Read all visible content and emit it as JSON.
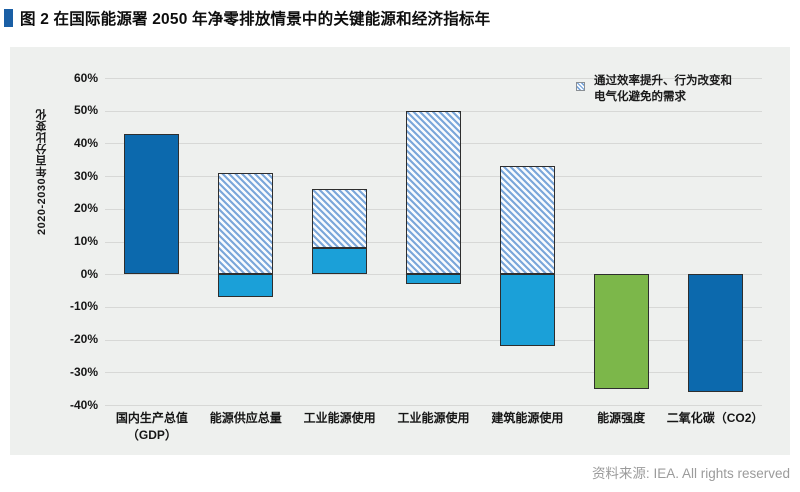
{
  "title": "图 2 在国际能源署 2050 年净零排放情景中的关键能源和经济指标年",
  "footer": {
    "source": "资料来源: IEA. All rights reserved"
  },
  "accent_color": "#1a5fa5",
  "chart_data": {
    "type": "bar",
    "stacked": true,
    "title": "图 2 在国际能源署 2050 年净零排放情景中的关键能源和经济指标年",
    "xlabel": "",
    "ylabel": "2020-2030年百分比变化",
    "ylim": [
      -40,
      60
    ],
    "ytick_step": 10,
    "ytick_format": "percent",
    "grid": true,
    "legend_position": "top-right",
    "legend": {
      "lines": [
        "通过效率提升、行为改变和",
        "电气化避免的需求"
      ],
      "style": "hatch"
    },
    "styles_note": {
      "blue": "solid dark blue",
      "cyan": "solid light blue",
      "green": "solid green",
      "hatch": "blue diagonal hatch = demand avoided through efficiency, behaviour change and electrification"
    },
    "colors": {
      "blue": "#0c69ad",
      "cyan": "#1ba0d8",
      "green": "#7cb74a",
      "hatch_stripe": "#7ba7da",
      "hatch_bg": "#f8fbfe",
      "bar_border": "#2e2e2e",
      "panel_bg": "#eef0ee",
      "gridline": "#d7d8d6"
    },
    "categories": [
      {
        "label": [
          "国内生产总值",
          "（GDP）"
        ],
        "segments": [
          {
            "from": 0,
            "to": 43,
            "style": "blue"
          }
        ]
      },
      {
        "label": [
          "能源供应总量"
        ],
        "segments": [
          {
            "from": 0,
            "to": 31,
            "style": "hatch"
          },
          {
            "from": -7,
            "to": 0,
            "style": "cyan"
          }
        ]
      },
      {
        "label": [
          "工业能源使用"
        ],
        "segments": [
          {
            "from": 0,
            "to": 8,
            "style": "cyan"
          },
          {
            "from": 8,
            "to": 26,
            "style": "hatch"
          }
        ]
      },
      {
        "label": [
          "工业能源使用"
        ],
        "segments": [
          {
            "from": 0,
            "to": 50,
            "style": "hatch"
          },
          {
            "from": -3,
            "to": 0,
            "style": "cyan"
          }
        ]
      },
      {
        "label": [
          "建筑能源使用"
        ],
        "segments": [
          {
            "from": 0,
            "to": 33,
            "style": "hatch"
          },
          {
            "from": -22,
            "to": 0,
            "style": "cyan"
          }
        ]
      },
      {
        "label": [
          "能源强度"
        ],
        "segments": [
          {
            "from": -35,
            "to": 0,
            "style": "green"
          }
        ]
      },
      {
        "label": [
          "二氧化碳（CO2）"
        ],
        "segments": [
          {
            "from": -36,
            "to": 0,
            "style": "blue"
          }
        ]
      }
    ]
  }
}
